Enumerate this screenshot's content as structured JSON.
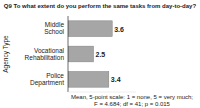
{
  "chart_data": {
    "type": "bar",
    "orientation": "horizontal",
    "title": "Q9 To what extent do you perform the same tasks from day-to-day?",
    "y_label": "Agency Type",
    "categories": [
      "Middle School",
      "Vocational Rehabilitation",
      "Police Department"
    ],
    "values": [
      3.6,
      2.5,
      3.4
    ],
    "color": "#a6a6a6",
    "xlim": [
      1,
      5
    ],
    "tick_labels": false,
    "data_labels": true,
    "annotations": [
      "Mean, 5-point scale: 1 = none, 5 = very much;",
      "F = 4.684; df = 41; p = 0.015"
    ]
  }
}
